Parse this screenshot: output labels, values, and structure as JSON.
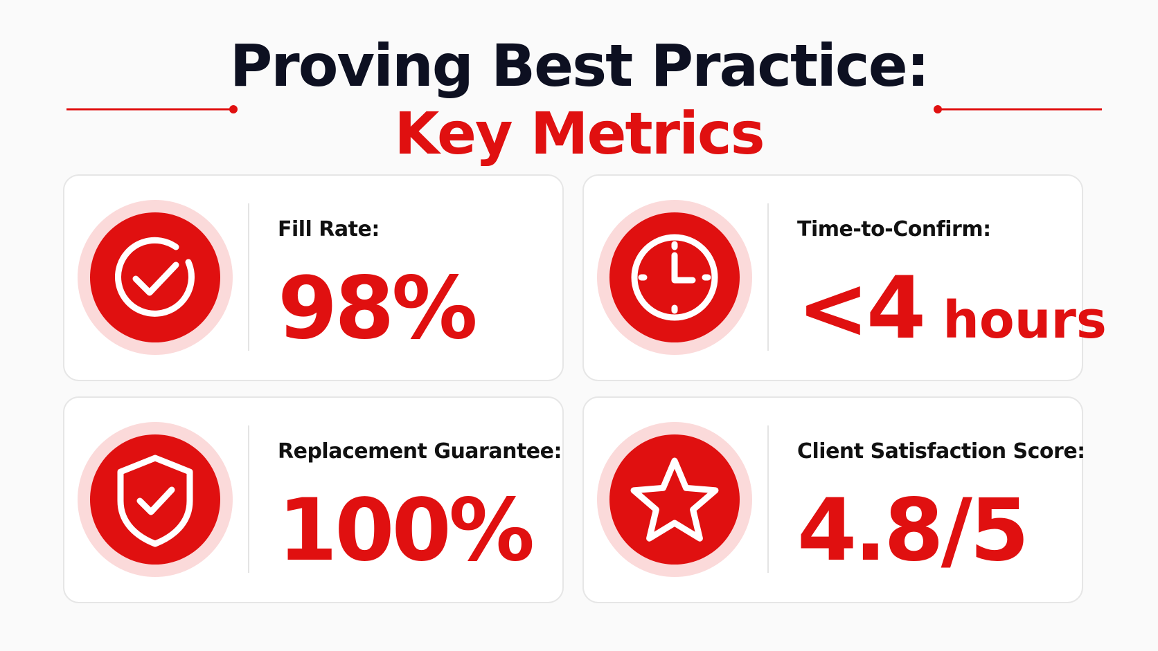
{
  "header": {
    "title": "Proving Best Practice:",
    "subtitle": "Key Metrics"
  },
  "metrics": [
    {
      "label": "Fill Rate:",
      "value": "98%"
    },
    {
      "label": "Time-to-Confirm:",
      "value": "<4",
      "unit": "hours"
    },
    {
      "label": "Replacement Guarantee:",
      "value": "100%"
    },
    {
      "label": "Client Satisfaction Score:",
      "value": "4.8/5"
    }
  ]
}
